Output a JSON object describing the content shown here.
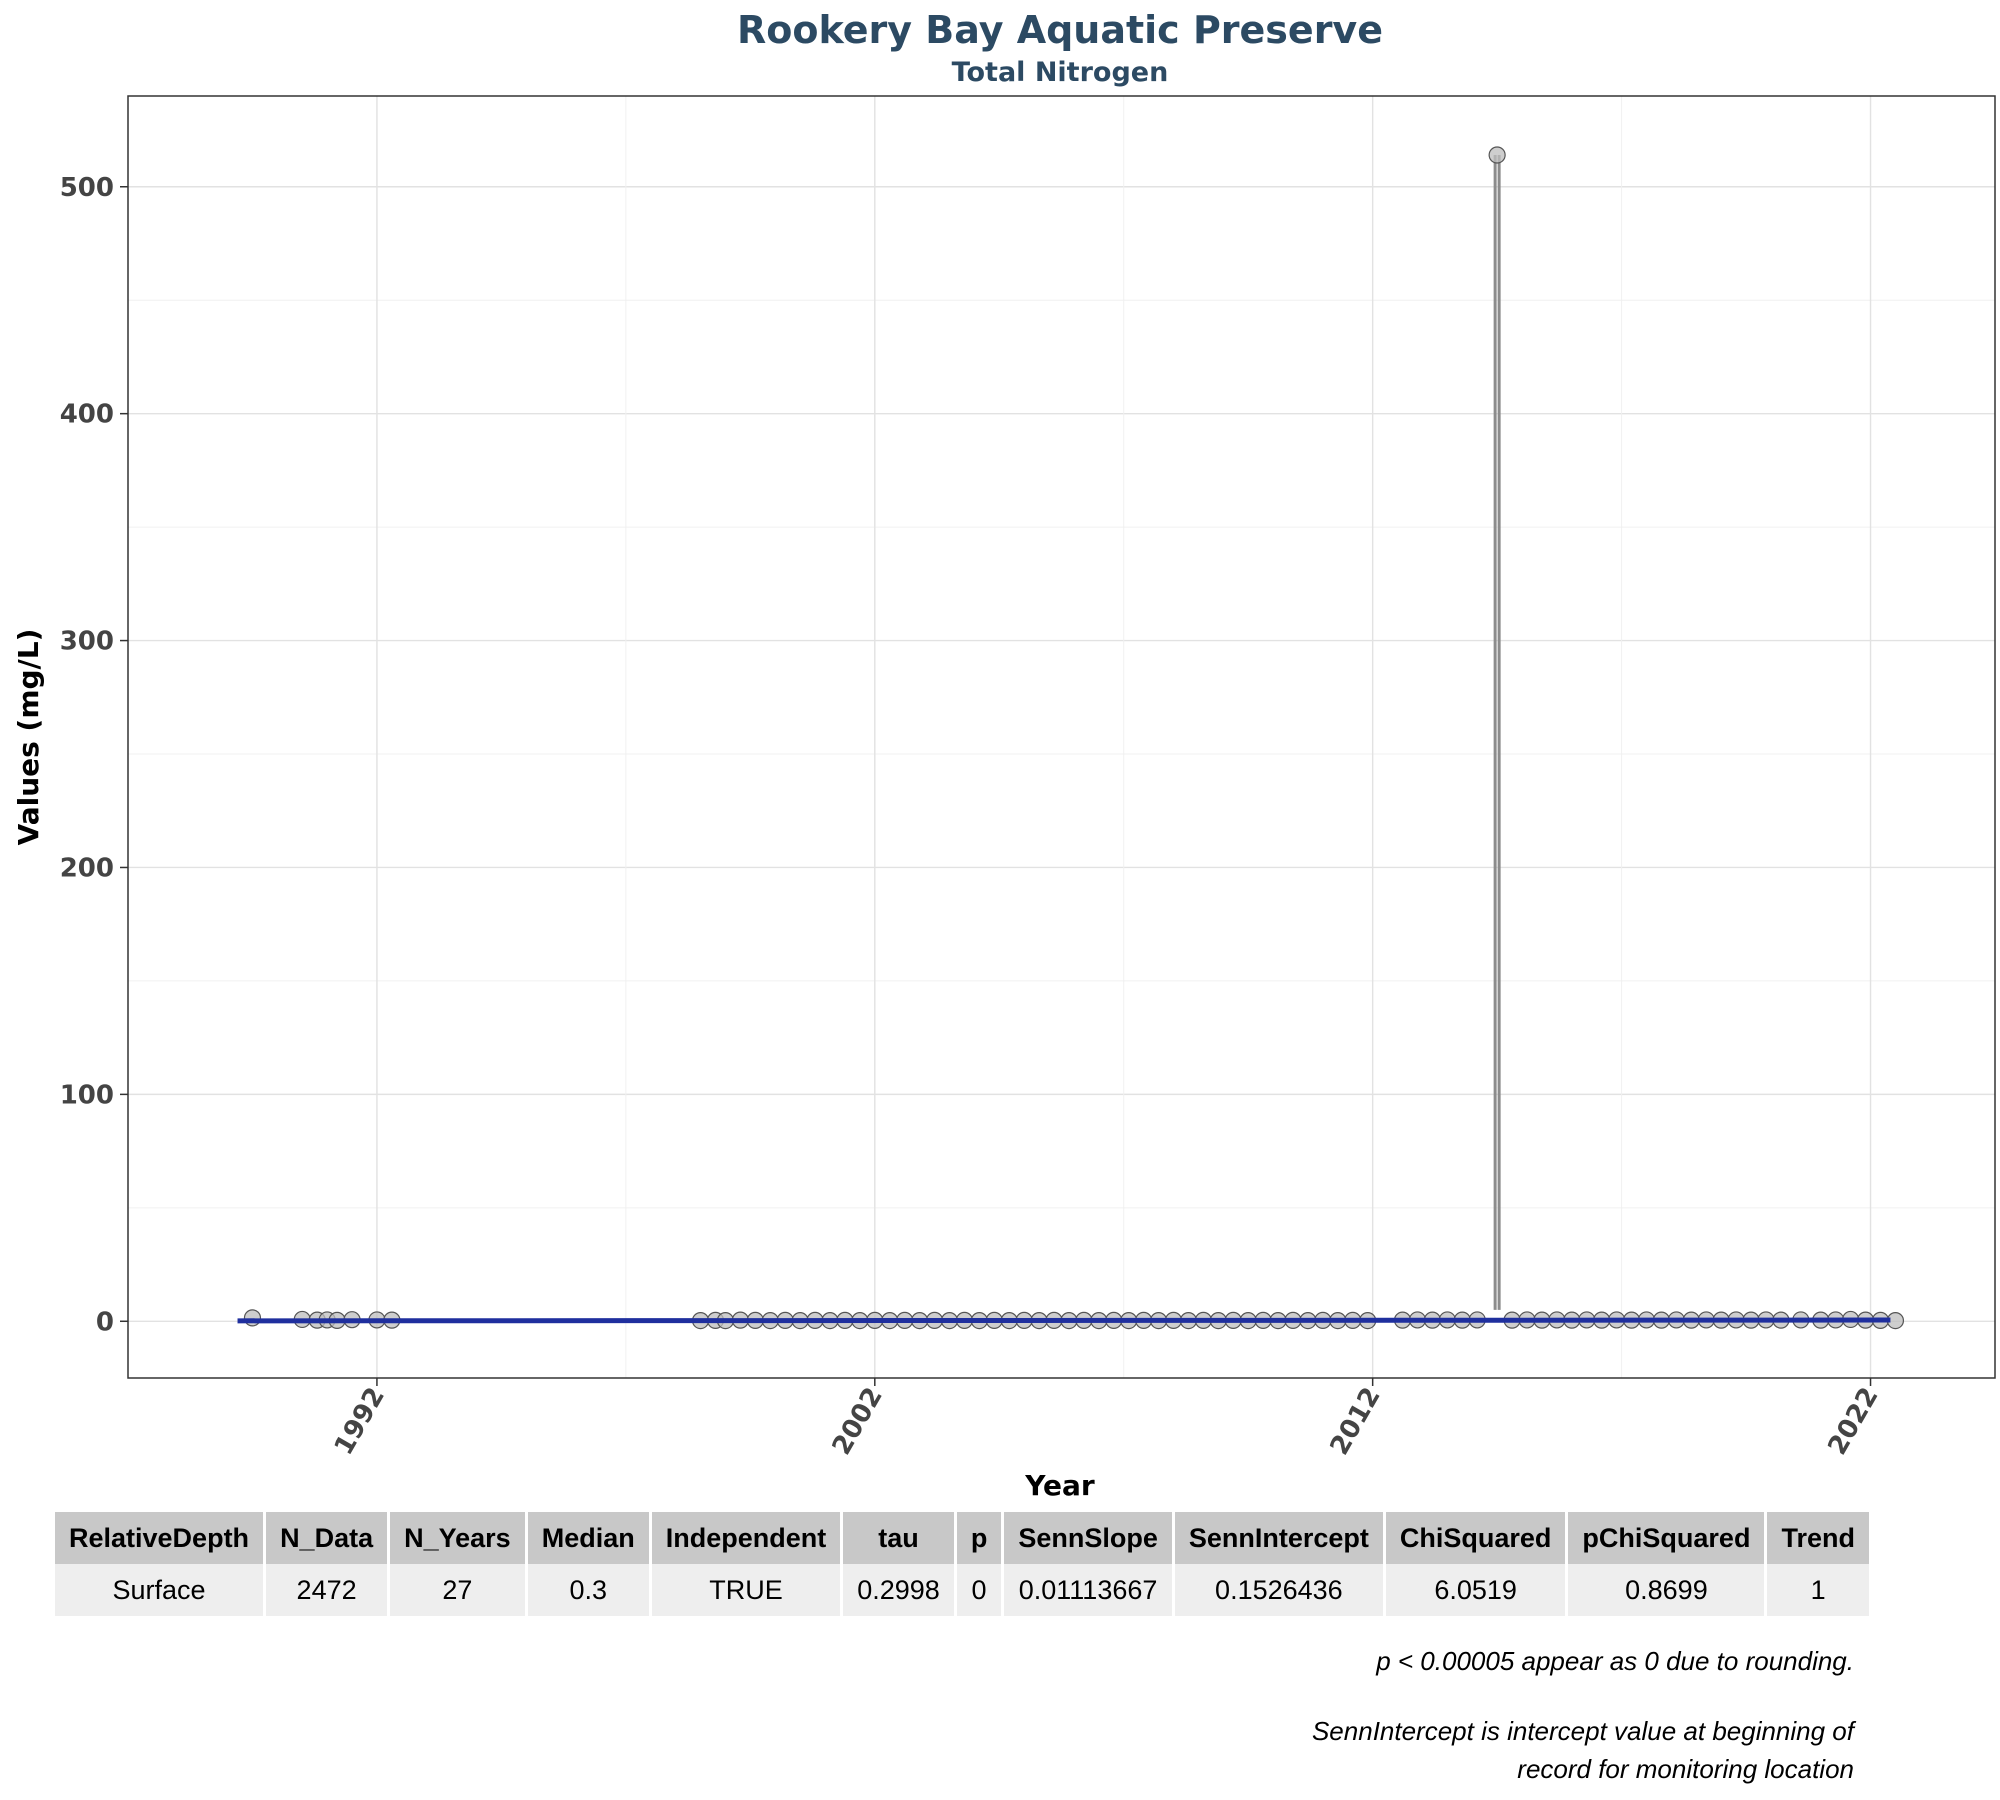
{
  "chart_data": {
    "type": "scatter",
    "title": "Rookery Bay Aquatic Preserve",
    "subtitle": "Total Nitrogen",
    "xlabel": "Year",
    "ylabel": "Values (mg/L)",
    "xlim": [
      1987.0,
      2024.5
    ],
    "ylim": [
      -25,
      540
    ],
    "x_ticks": [
      "1992",
      "2002",
      "2012",
      "2022"
    ],
    "y_ticks": [
      "0",
      "100",
      "200",
      "300",
      "400",
      "500"
    ],
    "grid": true,
    "colors": {
      "points": "#bdbdbd",
      "point_stroke": "#555555",
      "range_line": "#8c8c8c",
      "trend_line": "#1f2f9e"
    },
    "trend_line": {
      "x": [
        1989.2,
        2022.4
      ],
      "y": [
        0.2,
        0.55
      ]
    },
    "outlier_range": {
      "x": 2014.5,
      "y": [
        5,
        514
      ]
    },
    "series": [
      {
        "values": [
          [
            1989.5,
            1.5
          ],
          [
            1990.5,
            0.8
          ],
          [
            1990.8,
            0.5
          ],
          [
            1991.0,
            0.6
          ],
          [
            1991.2,
            0.4
          ],
          [
            1991.5,
            0.7
          ],
          [
            1992.0,
            0.6
          ],
          [
            1992.3,
            0.5
          ],
          [
            1998.5,
            0.3
          ],
          [
            1998.8,
            0.4
          ],
          [
            1999.0,
            0.3
          ],
          [
            1999.3,
            0.5
          ],
          [
            1999.6,
            0.4
          ],
          [
            1999.9,
            0.3
          ],
          [
            2000.2,
            0.4
          ],
          [
            2000.5,
            0.3
          ],
          [
            2000.8,
            0.4
          ],
          [
            2001.1,
            0.3
          ],
          [
            2001.4,
            0.4
          ],
          [
            2001.7,
            0.3
          ],
          [
            2002.0,
            0.4
          ],
          [
            2002.3,
            0.3
          ],
          [
            2002.6,
            0.4
          ],
          [
            2002.9,
            0.3
          ],
          [
            2003.2,
            0.4
          ],
          [
            2003.5,
            0.3
          ],
          [
            2003.8,
            0.4
          ],
          [
            2004.1,
            0.3
          ],
          [
            2004.4,
            0.4
          ],
          [
            2004.7,
            0.3
          ],
          [
            2005.0,
            0.4
          ],
          [
            2005.3,
            0.3
          ],
          [
            2005.6,
            0.4
          ],
          [
            2005.9,
            0.3
          ],
          [
            2006.2,
            0.4
          ],
          [
            2006.5,
            0.3
          ],
          [
            2006.8,
            0.4
          ],
          [
            2007.1,
            0.3
          ],
          [
            2007.4,
            0.4
          ],
          [
            2007.7,
            0.3
          ],
          [
            2008.0,
            0.4
          ],
          [
            2008.3,
            0.3
          ],
          [
            2008.6,
            0.4
          ],
          [
            2008.9,
            0.3
          ],
          [
            2009.2,
            0.4
          ],
          [
            2009.5,
            0.3
          ],
          [
            2009.8,
            0.4
          ],
          [
            2010.1,
            0.3
          ],
          [
            2010.4,
            0.4
          ],
          [
            2010.7,
            0.3
          ],
          [
            2011.0,
            0.4
          ],
          [
            2011.3,
            0.3
          ],
          [
            2011.6,
            0.4
          ],
          [
            2011.9,
            0.3
          ],
          [
            2012.6,
            0.5
          ],
          [
            2012.9,
            0.6
          ],
          [
            2013.2,
            0.5
          ],
          [
            2013.5,
            0.6
          ],
          [
            2013.8,
            0.5
          ],
          [
            2014.1,
            0.6
          ],
          [
            2014.5,
            514
          ],
          [
            2014.8,
            0.5
          ],
          [
            2015.1,
            0.6
          ],
          [
            2015.4,
            0.5
          ],
          [
            2015.7,
            0.6
          ],
          [
            2016.0,
            0.5
          ],
          [
            2016.3,
            0.6
          ],
          [
            2016.6,
            0.5
          ],
          [
            2016.9,
            0.6
          ],
          [
            2017.2,
            0.5
          ],
          [
            2017.5,
            0.6
          ],
          [
            2017.8,
            0.5
          ],
          [
            2018.1,
            0.6
          ],
          [
            2018.4,
            0.5
          ],
          [
            2018.7,
            0.6
          ],
          [
            2019.0,
            0.5
          ],
          [
            2019.3,
            0.6
          ],
          [
            2019.6,
            0.5
          ],
          [
            2019.9,
            0.6
          ],
          [
            2020.2,
            0.5
          ],
          [
            2020.6,
            0.6
          ],
          [
            2021.0,
            0.5
          ],
          [
            2021.3,
            0.6
          ],
          [
            2021.6,
            0.8
          ],
          [
            2021.9,
            0.5
          ],
          [
            2022.2,
            0.4
          ],
          [
            2022.5,
            0.3
          ]
        ]
      }
    ]
  },
  "table": {
    "headers": [
      "RelativeDepth",
      "N_Data",
      "N_Years",
      "Median",
      "Independent",
      "tau",
      "p",
      "SennSlope",
      "SennIntercept",
      "ChiSquared",
      "pChiSquared",
      "Trend"
    ],
    "rows": [
      [
        "Surface",
        "2472",
        "27",
        "0.3",
        "TRUE",
        "0.2998",
        "0",
        "0.01113667",
        "0.1526436",
        "6.0519",
        "0.8699",
        "1"
      ]
    ]
  },
  "notes": {
    "note1": "p < 0.00005 appear as 0 due to rounding.",
    "note2_line1": "SennIntercept is intercept value at beginning of",
    "note2_line2": "record for monitoring location"
  }
}
